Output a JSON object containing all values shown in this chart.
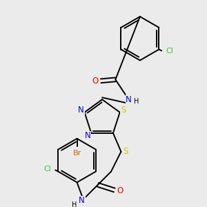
{
  "background_color": "#ebebeb",
  "colors": {
    "C": "#000000",
    "N": "#0000ee",
    "O": "#ee0000",
    "S": "#cccc00",
    "Cl": "#33cc33",
    "Br": "#cc6600",
    "bond": "#000000"
  },
  "bond_width": 1.4
}
